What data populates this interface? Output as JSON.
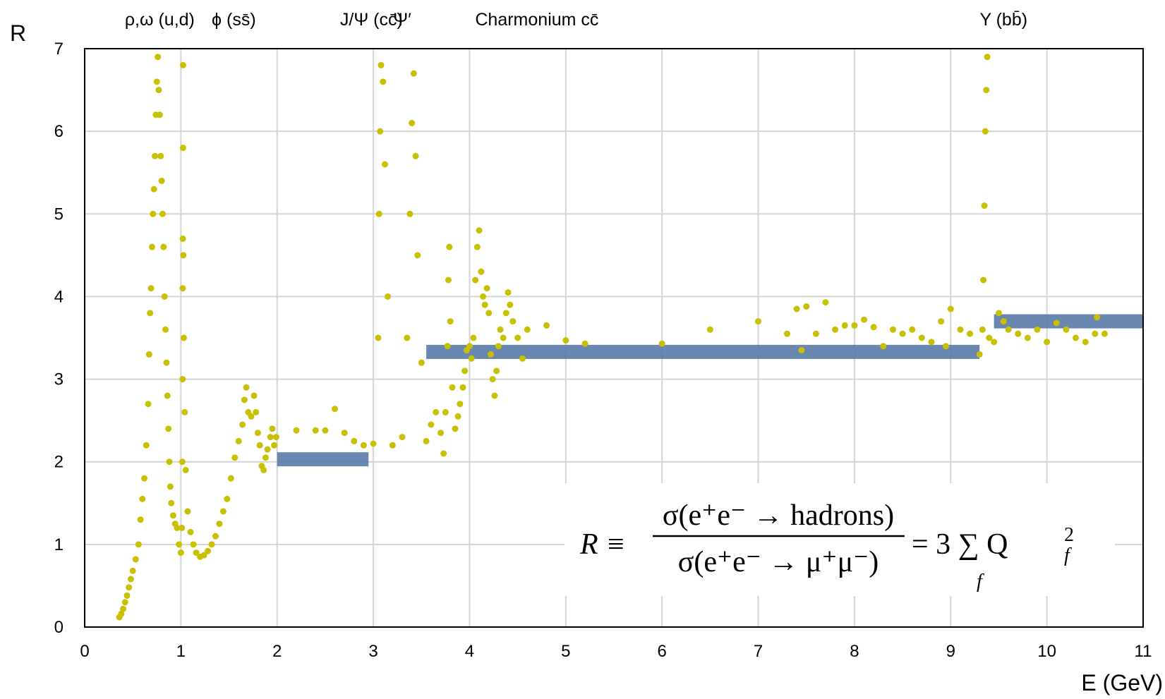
{
  "chart_data": {
    "type": "scatter",
    "xlabel": "E (GeV)",
    "ylabel": "R",
    "xlim": [
      0,
      11
    ],
    "ylim": [
      0,
      7
    ],
    "x_ticks": [
      "0",
      "1",
      "2",
      "3",
      "4",
      "5",
      "6",
      "7",
      "8",
      "9",
      "10",
      "11"
    ],
    "y_ticks": [
      "0",
      "1",
      "2",
      "3",
      "4",
      "5",
      "6",
      "7"
    ],
    "grid": true,
    "marker_color": "#c8c000",
    "band_color": "#5a7aa8",
    "resonance_labels": [
      {
        "text": "ρ,ω (u,d)",
        "x": 0.78
      },
      {
        "text": "ϕ (ss̄)",
        "x": 1.55
      },
      {
        "text": "J/Ψ (cc̄)",
        "x": 2.98
      },
      {
        "text": "Ψ′",
        "x": 3.3
      },
      {
        "text": "Charmonium cc̄",
        "x": 4.7
      },
      {
        "text": "Υ (bb̄)",
        "x": 9.55
      }
    ],
    "formula": {
      "lhs": "R ≡",
      "numerator": "σ(e⁺e⁻ → hadrons)",
      "denominator": "σ(e⁺e⁻ → μ⁺μ⁻)",
      "rhs": "= 3 ∑ Q",
      "sum_index": "f",
      "q_sub": "f",
      "q_sup": "2"
    },
    "bands": [
      {
        "x0": 2.0,
        "x1": 2.95,
        "y": 2.03
      },
      {
        "x0": 3.55,
        "x1": 9.3,
        "y": 3.33
      },
      {
        "x0": 9.45,
        "x1": 11.0,
        "y": 3.7
      }
    ],
    "series": [
      {
        "points": [
          [
            0.36,
            0.12
          ],
          [
            0.38,
            0.16
          ],
          [
            0.4,
            0.22
          ],
          [
            0.42,
            0.3
          ],
          [
            0.44,
            0.38
          ],
          [
            0.46,
            0.48
          ],
          [
            0.48,
            0.58
          ],
          [
            0.5,
            0.68
          ],
          [
            0.53,
            0.82
          ],
          [
            0.56,
            1.0
          ],
          [
            0.58,
            1.3
          ],
          [
            0.6,
            1.55
          ],
          [
            0.62,
            1.8
          ],
          [
            0.64,
            2.2
          ],
          [
            0.66,
            2.7
          ],
          [
            0.67,
            3.3
          ],
          [
            0.68,
            3.8
          ],
          [
            0.69,
            4.1
          ],
          [
            0.7,
            4.6
          ],
          [
            0.71,
            5.0
          ],
          [
            0.72,
            5.3
          ],
          [
            0.73,
            5.7
          ],
          [
            0.74,
            6.2
          ],
          [
            0.75,
            6.6
          ],
          [
            0.76,
            6.9
          ],
          [
            0.77,
            6.5
          ],
          [
            0.78,
            6.2
          ],
          [
            0.79,
            5.7
          ],
          [
            0.8,
            5.4
          ],
          [
            0.81,
            5.0
          ],
          [
            0.82,
            4.6
          ],
          [
            0.83,
            4.0
          ],
          [
            0.84,
            3.6
          ],
          [
            0.85,
            3.2
          ],
          [
            0.86,
            2.8
          ],
          [
            0.87,
            2.4
          ],
          [
            0.88,
            2.0
          ],
          [
            0.89,
            1.7
          ],
          [
            0.9,
            1.5
          ],
          [
            0.92,
            1.35
          ],
          [
            0.94,
            1.25
          ],
          [
            0.96,
            1.2
          ],
          [
            0.98,
            1.0
          ],
          [
            1.0,
            0.9
          ],
          [
            1.01,
            1.2
          ],
          [
            1.015,
            2.0
          ],
          [
            1.018,
            3.0
          ],
          [
            1.019,
            4.1
          ],
          [
            1.02,
            4.7
          ],
          [
            1.022,
            5.8
          ],
          [
            1.023,
            6.8
          ],
          [
            1.025,
            4.5
          ],
          [
            1.03,
            3.5
          ],
          [
            1.04,
            2.6
          ],
          [
            1.05,
            1.9
          ],
          [
            1.07,
            1.4
          ],
          [
            1.1,
            1.15
          ],
          [
            1.13,
            1.0
          ],
          [
            1.16,
            0.9
          ],
          [
            1.2,
            0.85
          ],
          [
            1.24,
            0.87
          ],
          [
            1.28,
            0.92
          ],
          [
            1.32,
            1.0
          ],
          [
            1.36,
            1.1
          ],
          [
            1.4,
            1.25
          ],
          [
            1.44,
            1.4
          ],
          [
            1.48,
            1.55
          ],
          [
            1.52,
            1.8
          ],
          [
            1.56,
            2.05
          ],
          [
            1.6,
            2.25
          ],
          [
            1.64,
            2.45
          ],
          [
            1.66,
            2.75
          ],
          [
            1.68,
            2.9
          ],
          [
            1.7,
            2.6
          ],
          [
            1.73,
            2.55
          ],
          [
            1.76,
            2.8
          ],
          [
            1.78,
            2.6
          ],
          [
            1.8,
            2.35
          ],
          [
            1.82,
            2.2
          ],
          [
            1.84,
            1.95
          ],
          [
            1.86,
            1.9
          ],
          [
            1.88,
            2.05
          ],
          [
            1.9,
            2.15
          ],
          [
            1.93,
            2.3
          ],
          [
            1.95,
            2.4
          ],
          [
            1.97,
            2.2
          ],
          [
            1.99,
            2.3
          ],
          [
            2.2,
            2.38
          ],
          [
            2.4,
            2.38
          ],
          [
            2.5,
            2.38
          ],
          [
            2.6,
            2.64
          ],
          [
            2.7,
            2.35
          ],
          [
            2.8,
            2.25
          ],
          [
            2.9,
            2.2
          ],
          [
            3.0,
            2.22
          ],
          [
            3.05,
            3.5
          ],
          [
            3.06,
            5.0
          ],
          [
            3.07,
            6.0
          ],
          [
            3.08,
            6.8
          ],
          [
            3.1,
            6.6
          ],
          [
            3.12,
            5.6
          ],
          [
            3.15,
            4.0
          ],
          [
            3.2,
            2.2
          ],
          [
            3.3,
            2.3
          ],
          [
            3.35,
            3.5
          ],
          [
            3.38,
            5.0
          ],
          [
            3.4,
            6.1
          ],
          [
            3.42,
            6.7
          ],
          [
            3.44,
            5.7
          ],
          [
            3.46,
            4.5
          ],
          [
            3.5,
            3.2
          ],
          [
            3.55,
            2.25
          ],
          [
            3.6,
            2.45
          ],
          [
            3.65,
            2.6
          ],
          [
            3.7,
            2.35
          ],
          [
            3.73,
            2.1
          ],
          [
            3.75,
            2.6
          ],
          [
            3.77,
            3.4
          ],
          [
            3.78,
            4.2
          ],
          [
            3.79,
            4.6
          ],
          [
            3.8,
            3.7
          ],
          [
            3.82,
            2.9
          ],
          [
            3.85,
            2.4
          ],
          [
            3.88,
            2.55
          ],
          [
            3.9,
            2.7
          ],
          [
            3.93,
            2.9
          ],
          [
            3.95,
            3.1
          ],
          [
            3.97,
            3.35
          ],
          [
            4.0,
            3.4
          ],
          [
            4.02,
            3.25
          ],
          [
            4.04,
            3.5
          ],
          [
            4.06,
            4.2
          ],
          [
            4.08,
            4.6
          ],
          [
            4.1,
            4.8
          ],
          [
            4.12,
            4.3
          ],
          [
            4.14,
            4.0
          ],
          [
            4.16,
            3.9
          ],
          [
            4.18,
            4.1
          ],
          [
            4.2,
            3.8
          ],
          [
            4.22,
            3.3
          ],
          [
            4.24,
            3.0
          ],
          [
            4.26,
            2.8
          ],
          [
            4.28,
            3.1
          ],
          [
            4.3,
            3.4
          ],
          [
            4.32,
            3.6
          ],
          [
            4.35,
            3.5
          ],
          [
            4.38,
            3.8
          ],
          [
            4.4,
            4.05
          ],
          [
            4.42,
            3.9
          ],
          [
            4.45,
            3.7
          ],
          [
            4.5,
            3.5
          ],
          [
            4.55,
            3.25
          ],
          [
            4.6,
            3.6
          ],
          [
            4.8,
            3.65
          ],
          [
            5.0,
            3.47
          ],
          [
            5.2,
            3.43
          ],
          [
            6.0,
            3.43
          ],
          [
            6.5,
            3.6
          ],
          [
            7.0,
            3.7
          ],
          [
            7.3,
            3.55
          ],
          [
            7.4,
            3.85
          ],
          [
            7.45,
            3.35
          ],
          [
            7.5,
            3.88
          ],
          [
            7.6,
            3.55
          ],
          [
            7.7,
            3.93
          ],
          [
            7.8,
            3.6
          ],
          [
            7.9,
            3.65
          ],
          [
            8.0,
            3.65
          ],
          [
            8.1,
            3.72
          ],
          [
            8.2,
            3.63
          ],
          [
            8.3,
            3.4
          ],
          [
            8.4,
            3.6
          ],
          [
            8.5,
            3.55
          ],
          [
            8.6,
            3.6
          ],
          [
            8.7,
            3.5
          ],
          [
            8.8,
            3.45
          ],
          [
            8.9,
            3.7
          ],
          [
            8.95,
            3.4
          ],
          [
            9.0,
            3.85
          ],
          [
            9.1,
            3.6
          ],
          [
            9.2,
            3.55
          ],
          [
            9.3,
            3.3
          ],
          [
            9.33,
            3.6
          ],
          [
            9.34,
            4.2
          ],
          [
            9.35,
            5.1
          ],
          [
            9.36,
            6.0
          ],
          [
            9.37,
            6.5
          ],
          [
            9.38,
            6.9
          ],
          [
            9.4,
            3.5
          ],
          [
            9.45,
            3.45
          ],
          [
            9.5,
            3.8
          ],
          [
            9.55,
            3.7
          ],
          [
            9.6,
            3.6
          ],
          [
            9.7,
            3.55
          ],
          [
            9.8,
            3.5
          ],
          [
            9.9,
            3.6
          ],
          [
            10.0,
            3.45
          ],
          [
            10.1,
            3.68
          ],
          [
            10.2,
            3.6
          ],
          [
            10.3,
            3.5
          ],
          [
            10.4,
            3.45
          ],
          [
            10.5,
            3.55
          ],
          [
            10.52,
            3.75
          ],
          [
            10.6,
            3.55
          ]
        ]
      }
    ]
  }
}
